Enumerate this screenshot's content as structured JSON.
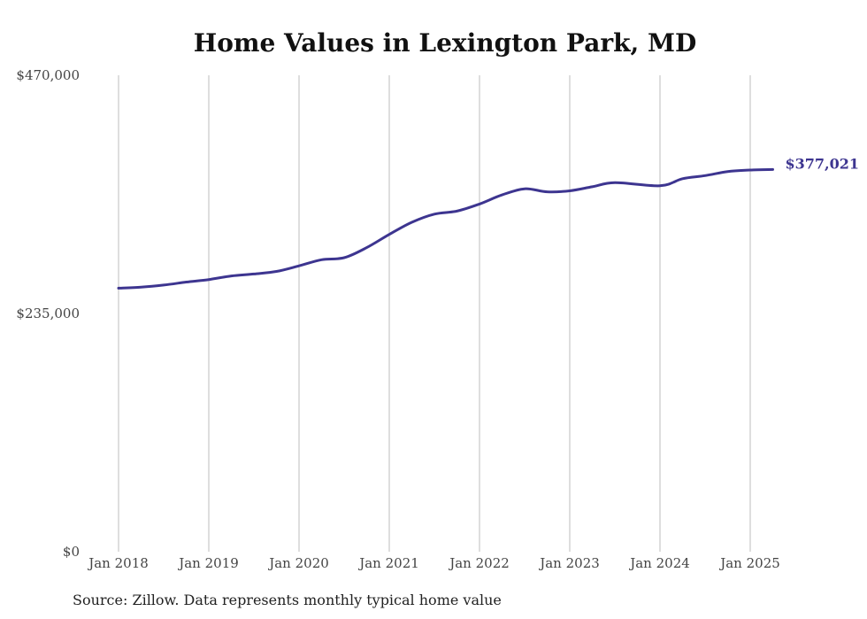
{
  "chart_data": {
    "type": "line",
    "title": "Home Values in Lexington Park, MD",
    "xlabel": "",
    "ylabel": "",
    "x_range": [
      "2018-01",
      "2025-04"
    ],
    "ylim": [
      0,
      470000
    ],
    "y_ticks": [
      {
        "value": 0,
        "label": "$0"
      },
      {
        "value": 235000,
        "label": "$235,000"
      },
      {
        "value": 470000,
        "label": "$470,000"
      }
    ],
    "x_ticks": [
      {
        "date": "2018-01",
        "label": "Jan 2018"
      },
      {
        "date": "2019-01",
        "label": "Jan 2019"
      },
      {
        "date": "2020-01",
        "label": "Jan 2020"
      },
      {
        "date": "2021-01",
        "label": "Jan 2021"
      },
      {
        "date": "2022-01",
        "label": "Jan 2022"
      },
      {
        "date": "2023-01",
        "label": "Jan 2023"
      },
      {
        "date": "2024-01",
        "label": "Jan 2024"
      },
      {
        "date": "2025-01",
        "label": "Jan 2025"
      }
    ],
    "grid": "vertical",
    "line_color": "#3d3590",
    "series": [
      {
        "points": [
          {
            "x": "2018-01",
            "y": 260000
          },
          {
            "x": "2018-04",
            "y": 261000
          },
          {
            "x": "2018-07",
            "y": 263000
          },
          {
            "x": "2018-10",
            "y": 266000
          },
          {
            "x": "2019-01",
            "y": 268500
          },
          {
            "x": "2019-04",
            "y": 272000
          },
          {
            "x": "2019-07",
            "y": 274000
          },
          {
            "x": "2019-10",
            "y": 276500
          },
          {
            "x": "2020-01",
            "y": 282000
          },
          {
            "x": "2020-04",
            "y": 288000
          },
          {
            "x": "2020-07",
            "y": 290000
          },
          {
            "x": "2020-10",
            "y": 300000
          },
          {
            "x": "2021-01",
            "y": 313000
          },
          {
            "x": "2021-04",
            "y": 325000
          },
          {
            "x": "2021-07",
            "y": 333000
          },
          {
            "x": "2021-10",
            "y": 336000
          },
          {
            "x": "2022-01",
            "y": 343000
          },
          {
            "x": "2022-04",
            "y": 352000
          },
          {
            "x": "2022-07",
            "y": 358000
          },
          {
            "x": "2022-10",
            "y": 355000
          },
          {
            "x": "2023-01",
            "y": 356000
          },
          {
            "x": "2023-04",
            "y": 360000
          },
          {
            "x": "2023-07",
            "y": 364000
          },
          {
            "x": "2024-01",
            "y": 361000
          },
          {
            "x": "2024-04",
            "y": 368000
          },
          {
            "x": "2024-07",
            "y": 371000
          },
          {
            "x": "2024-10",
            "y": 375000
          },
          {
            "x": "2025-01",
            "y": 376500
          },
          {
            "x": "2025-04",
            "y": 377021
          }
        ],
        "end_label": "$377,021"
      }
    ]
  },
  "source_note": "Source: Zillow. Data represents monthly typical home value"
}
